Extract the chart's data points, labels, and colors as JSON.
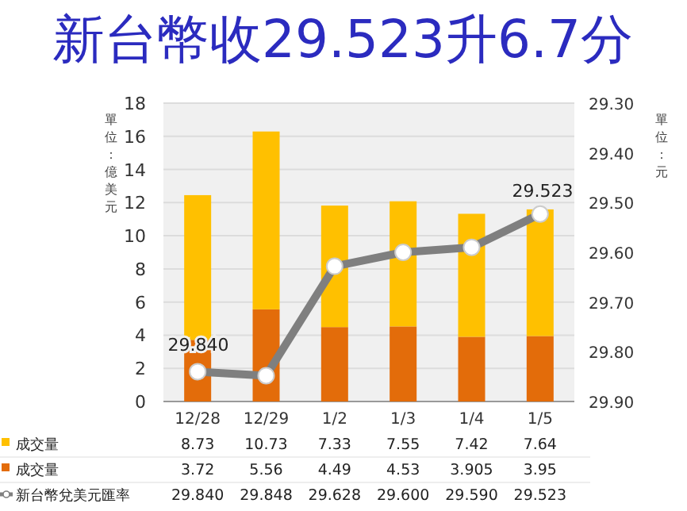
{
  "chart_data": {
    "type": "bar",
    "title": "新台幣收29.523升6.7分",
    "ylabel": "單位：億美元",
    "y2label": "單位：元",
    "categories": [
      "12/28",
      "12/29",
      "1/2",
      "1/3",
      "1/4",
      "1/5"
    ],
    "stacked": true,
    "series": [
      {
        "name": "成交量",
        "color": "#e36c0a",
        "values": [
          3.72,
          5.56,
          4.49,
          4.53,
          3.905,
          3.95
        ],
        "value_labels": [
          "3.72",
          "5.56",
          "4.49",
          "4.53",
          "3.905",
          "3.95"
        ]
      },
      {
        "name": "成交量",
        "color": "#ffc000",
        "values": [
          8.73,
          10.73,
          7.33,
          7.55,
          7.42,
          7.64
        ],
        "value_labels": [
          "8.73",
          "10.73",
          "7.33",
          "7.55",
          "7.42",
          "7.64"
        ]
      },
      {
        "name": "新台幣兌美元匯率",
        "type": "line",
        "axis": "y2",
        "color": "#7f7f7f",
        "marker": "circle",
        "values": [
          29.84,
          29.848,
          29.628,
          29.6,
          29.59,
          29.523
        ],
        "value_labels": [
          "29.840",
          "29.848",
          "29.628",
          "29.600",
          "29.590",
          "29.523"
        ]
      }
    ],
    "ylim": [
      0,
      18
    ],
    "yticks": [
      0,
      2,
      4,
      6,
      8,
      10,
      12,
      14,
      16,
      18
    ],
    "y2lim": [
      29.9,
      29.3
    ],
    "y2ticks": [
      {
        "value": 29.3,
        "label": "29.30"
      },
      {
        "value": 29.4,
        "label": "29.40"
      },
      {
        "value": 29.5,
        "label": "29.50"
      },
      {
        "value": 29.6,
        "label": "29.60"
      },
      {
        "value": 29.7,
        "label": "29.70"
      },
      {
        "value": 29.8,
        "label": "29.80"
      },
      {
        "value": 29.9,
        "label": "29.90"
      }
    ],
    "annotations": [
      "29.840",
      "29.523"
    ],
    "grid": "y",
    "legend": "bottom"
  }
}
